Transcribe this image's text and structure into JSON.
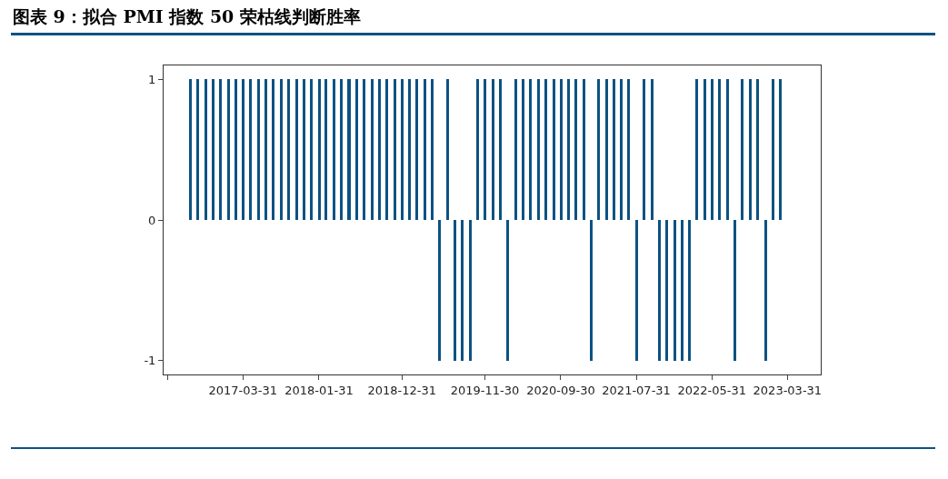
{
  "chart_data": {
    "type": "bar",
    "title": "图表 9：拟合 PMI 指数 50 荣枯线判断胜率",
    "x": [
      "2016-09",
      "2016-10",
      "2016-11",
      "2016-12",
      "2017-01",
      "2017-02",
      "2017-03",
      "2017-04",
      "2017-05",
      "2017-06",
      "2017-07",
      "2017-08",
      "2017-09",
      "2017-10",
      "2017-11",
      "2017-12",
      "2018-01",
      "2018-02",
      "2018-03",
      "2018-04",
      "2018-05",
      "2018-06",
      "2018-07",
      "2018-08",
      "2018-09",
      "2018-10",
      "2018-11",
      "2018-12",
      "2019-01",
      "2019-02",
      "2019-03",
      "2019-04",
      "2019-05",
      "2019-06",
      "2019-07",
      "2019-08",
      "2019-09",
      "2019-10",
      "2019-11",
      "2019-12",
      "2020-01",
      "2020-02",
      "2020-03",
      "2020-04",
      "2020-05",
      "2020-06",
      "2020-07",
      "2020-08",
      "2020-09",
      "2020-10",
      "2020-11",
      "2020-12",
      "2021-01",
      "2021-02",
      "2021-03",
      "2021-04",
      "2021-05",
      "2021-06",
      "2021-07",
      "2021-08",
      "2021-09",
      "2021-10",
      "2021-11",
      "2021-12",
      "2022-01",
      "2022-02",
      "2022-03",
      "2022-04",
      "2022-05",
      "2022-06",
      "2022-07",
      "2022-08",
      "2022-09",
      "2022-10",
      "2022-11",
      "2022-12",
      "2023-01",
      "2023-02",
      "2023-03"
    ],
    "values": [
      1,
      1,
      1,
      1,
      1,
      1,
      1,
      1,
      1,
      1,
      1,
      1,
      1,
      1,
      1,
      1,
      1,
      1,
      1,
      1,
      1,
      1,
      1,
      1,
      1,
      1,
      1,
      1,
      1,
      1,
      1,
      1,
      1,
      -1,
      1,
      -1,
      -1,
      -1,
      1,
      1,
      1,
      1,
      -1,
      1,
      1,
      1,
      1,
      1,
      1,
      1,
      1,
      1,
      1,
      -1,
      1,
      1,
      1,
      1,
      1,
      -1,
      1,
      1,
      -1,
      -1,
      -1,
      -1,
      -1,
      1,
      1,
      1,
      1,
      1,
      -1,
      1,
      1,
      1,
      -1,
      1,
      1
    ],
    "color": "#0d5282",
    "xlim": [
      "2016-05-16",
      "2023-08-12"
    ],
    "xticks": [
      {
        "value": "2016-05-31",
        "label": null
      },
      "2017-03-31",
      "2018-01-31",
      "2018-12-31",
      "2019-11-30",
      "2020-09-30",
      "2021-07-31",
      "2022-05-31",
      "2023-03-31"
    ],
    "ylim": [
      -1.1,
      1.1
    ],
    "yticks": [
      -1,
      0,
      1
    ],
    "grid": false
  }
}
